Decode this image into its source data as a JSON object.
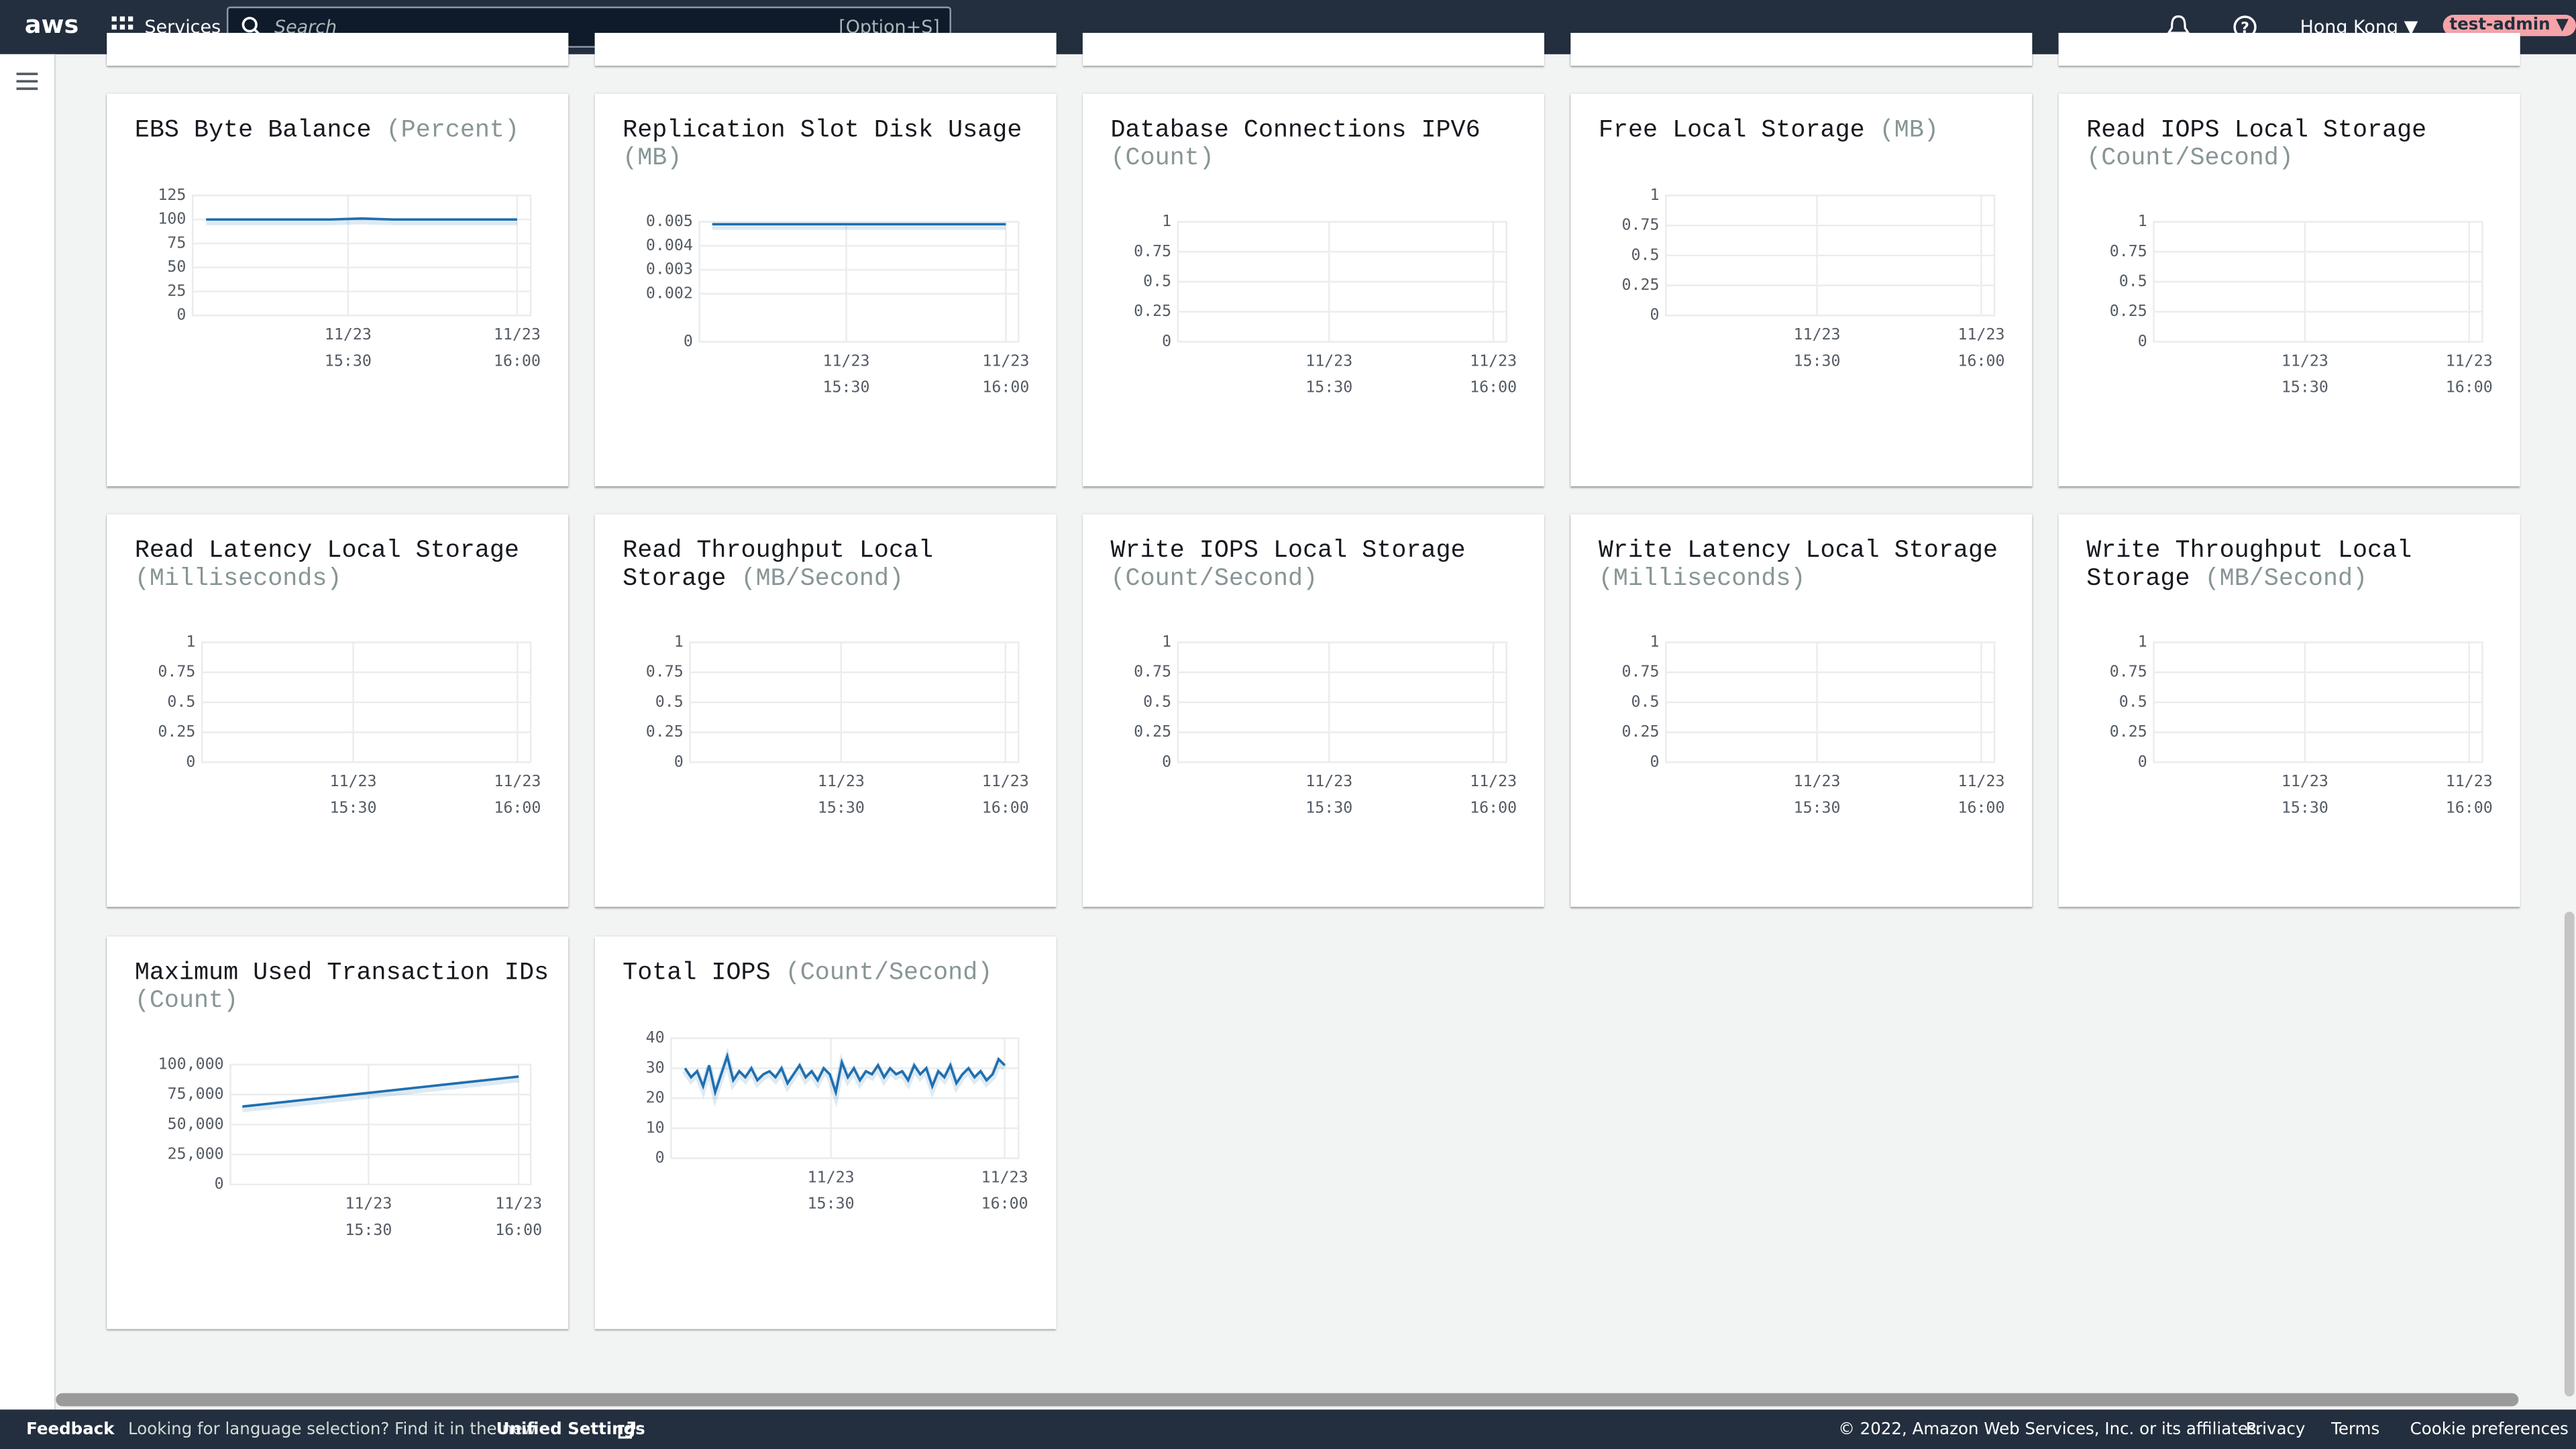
{
  "header": {
    "logo": "aws",
    "services": "Services",
    "search_placeholder": "Search",
    "search_shortcut": "[Option+S]",
    "region": "Hong Kong",
    "user": "test-admin"
  },
  "charts": [
    {
      "title": "EBS Byte Balance",
      "unit": "(Percent)",
      "ylim": [
        0,
        125
      ],
      "yticks": [
        0,
        25,
        50,
        75,
        100,
        125
      ],
      "xticks": [
        {
          "date": "11/23",
          "time": "15:30"
        },
        {
          "date": "11/23",
          "time": "16:00"
        }
      ],
      "color": "#1f6fb0",
      "values": [
        100,
        100,
        100,
        100,
        100,
        101,
        100,
        100,
        100,
        100,
        100
      ]
    },
    {
      "title": "Replication Slot Disk Usage",
      "unit": "(MB)",
      "ylim": [
        0,
        0.005
      ],
      "yticks": [
        0,
        0.002,
        0.003,
        0.004,
        0.005
      ],
      "xticks": [
        {
          "date": "11/23",
          "time": "15:30"
        },
        {
          "date": "11/23",
          "time": "16:00"
        }
      ],
      "color": "#1f6fb0",
      "values": [
        0.0049,
        0.0049,
        0.0049,
        0.0049,
        0.0049,
        0.0049,
        0.0049,
        0.0049,
        0.0049,
        0.0049,
        0.0049
      ]
    },
    {
      "title": "Database Connections IPV6",
      "unit": "(Count)",
      "ylim": [
        0,
        1
      ],
      "yticks": [
        0,
        0.25,
        0.5,
        0.75,
        1
      ],
      "xticks": [
        {
          "date": "11/23",
          "time": "15:30"
        },
        {
          "date": "11/23",
          "time": "16:00"
        }
      ]
    },
    {
      "title": "Free Local Storage",
      "unit": "(MB)",
      "ylim": [
        0,
        1
      ],
      "yticks": [
        0,
        0.25,
        0.5,
        0.75,
        1
      ],
      "xticks": [
        {
          "date": "11/23",
          "time": "15:30"
        },
        {
          "date": "11/23",
          "time": "16:00"
        }
      ]
    },
    {
      "title": "Read IOPS Local Storage",
      "unit": "(Count/Second)",
      "ylim": [
        0,
        1
      ],
      "yticks": [
        0,
        0.25,
        0.5,
        0.75,
        1
      ],
      "xticks": [
        {
          "date": "11/23",
          "time": "15:30"
        },
        {
          "date": "11/23",
          "time": "16:00"
        }
      ]
    },
    {
      "title": "Read Latency Local Storage",
      "unit": "(Milliseconds)",
      "ylim": [
        0,
        1
      ],
      "yticks": [
        0,
        0.25,
        0.5,
        0.75,
        1
      ],
      "xticks": [
        {
          "date": "11/23",
          "time": "15:30"
        },
        {
          "date": "11/23",
          "time": "16:00"
        }
      ]
    },
    {
      "title": "Read Throughput Local Storage",
      "unit": "(MB/Second)",
      "ylim": [
        0,
        1
      ],
      "yticks": [
        0,
        0.25,
        0.5,
        0.75,
        1
      ],
      "xticks": [
        {
          "date": "11/23",
          "time": "15:30"
        },
        {
          "date": "11/23",
          "time": "16:00"
        }
      ]
    },
    {
      "title": "Write IOPS Local Storage",
      "unit": "(Count/Second)",
      "ylim": [
        0,
        1
      ],
      "yticks": [
        0,
        0.25,
        0.5,
        0.75,
        1
      ],
      "xticks": [
        {
          "date": "11/23",
          "time": "15:30"
        },
        {
          "date": "11/23",
          "time": "16:00"
        }
      ]
    },
    {
      "title": "Write Latency Local Storage",
      "unit": "(Milliseconds)",
      "ylim": [
        0,
        1
      ],
      "yticks": [
        0,
        0.25,
        0.5,
        0.75,
        1
      ],
      "xticks": [
        {
          "date": "11/23",
          "time": "15:30"
        },
        {
          "date": "11/23",
          "time": "16:00"
        }
      ]
    },
    {
      "title": "Write Throughput Local Storage",
      "unit": "(MB/Second)",
      "ylim": [
        0,
        1
      ],
      "yticks": [
        0,
        0.25,
        0.5,
        0.75,
        1
      ],
      "xticks": [
        {
          "date": "11/23",
          "time": "15:30"
        },
        {
          "date": "11/23",
          "time": "16:00"
        }
      ]
    },
    {
      "title": "Maximum Used Transaction IDs",
      "unit": "(Count)",
      "ylim": [
        0,
        100000
      ],
      "yticks": [
        0,
        {
          "value": 25000,
          "label": "25,000"
        },
        {
          "value": 50000,
          "label": "50,000"
        },
        {
          "value": 75000,
          "label": "75,000"
        },
        {
          "value": 100000,
          "label": "100,000"
        }
      ],
      "xticks": [
        {
          "date": "11/23",
          "time": "15:30"
        },
        {
          "date": "11/23",
          "time": "16:00"
        }
      ],
      "color": "#1f6fb0",
      "values": [
        65000,
        67500,
        70000,
        72500,
        75000,
        77500,
        80000,
        82500,
        85000,
        87500,
        90000
      ]
    },
    {
      "title": "Total IOPS",
      "unit": "(Count/Second)",
      "ylim": [
        0,
        40
      ],
      "yticks": [
        0,
        10,
        20,
        30,
        40
      ],
      "xticks": [
        {
          "date": "11/23",
          "time": "15:30"
        },
        {
          "date": "11/23",
          "time": "16:00"
        }
      ],
      "color": "#1f6fb0",
      "values": [
        30,
        27,
        29,
        24,
        31,
        22,
        28,
        34,
        26,
        29,
        27,
        30,
        26,
        28,
        29,
        27,
        30,
        25,
        28,
        31,
        27,
        29,
        26,
        30,
        28,
        22,
        32,
        27,
        30,
        26,
        29,
        28,
        31,
        27,
        30,
        28,
        29,
        26,
        31,
        28,
        30,
        24,
        29,
        27,
        31,
        25,
        28,
        30,
        27,
        29,
        26,
        28,
        33,
        31
      ]
    }
  ],
  "footer": {
    "feedback": "Feedback",
    "language_note": "Looking for language selection? Find it in the new",
    "unified_settings": "Unified Settings",
    "copyright": "© 2022, Amazon Web Services, Inc. or its affiliates.",
    "privacy": "Privacy",
    "terms": "Terms",
    "cookies": "Cookie preferences"
  }
}
